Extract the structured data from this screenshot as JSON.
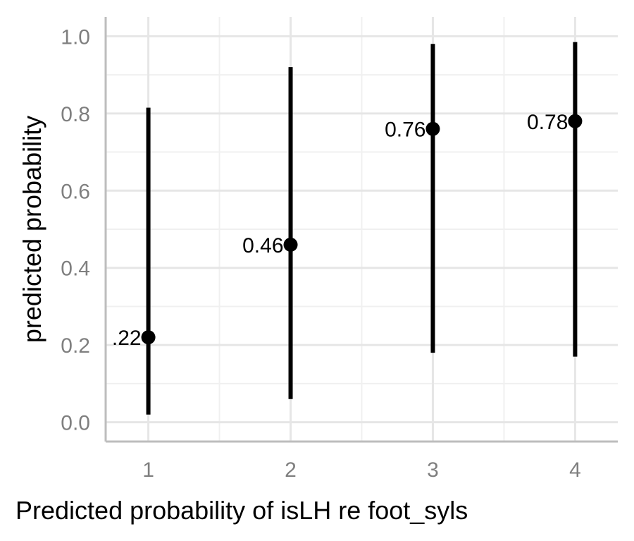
{
  "chart_data": {
    "type": "scatter",
    "subtype": "point-with-errorbars",
    "x": [
      1,
      2,
      3,
      4
    ],
    "x_tick_labels": [
      "1",
      "2",
      "3",
      "4"
    ],
    "y": [
      0.22,
      0.46,
      0.76,
      0.78
    ],
    "y_lower": [
      0.02,
      0.06,
      0.18,
      0.17
    ],
    "y_upper": [
      0.815,
      0.92,
      0.98,
      0.985
    ],
    "point_labels": [
      ".22",
      "0.46",
      "0.76",
      "0.78"
    ],
    "xlabel": "Predicted probability of isLH re foot_syls",
    "ylabel": "predicted probability",
    "y_tick_labels": [
      "0.0",
      "0.2",
      "0.4",
      "0.6",
      "0.8",
      "1.0"
    ],
    "y_ticks": [
      0.0,
      0.2,
      0.4,
      0.6,
      0.8,
      1.0
    ],
    "xlim": [
      0.7,
      4.3
    ],
    "ylim": [
      -0.05,
      1.05
    ],
    "grid": true,
    "legend": "none",
    "colors": {
      "marks": "#000000",
      "grid_major": "#e6e6e6",
      "grid_minor": "#f0f0f0",
      "axis": "#bdbdbd",
      "tick_text": "#7f7f7f"
    }
  }
}
